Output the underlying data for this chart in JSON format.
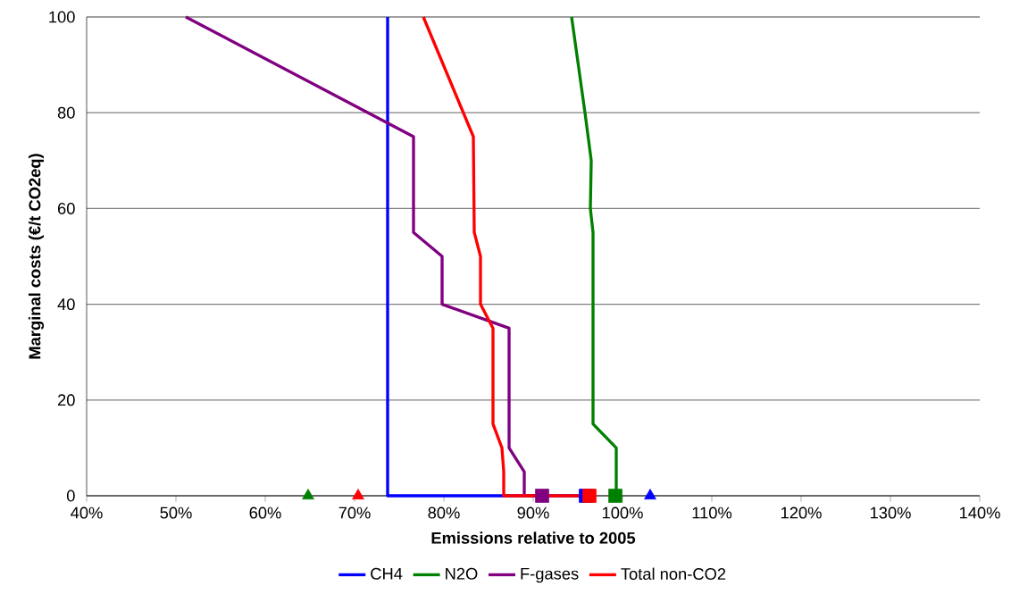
{
  "chart_data": {
    "type": "line",
    "xlabel": "Emissions relative to 2005",
    "ylabel": "Marginal costs (€/t CO2eq)",
    "xlim": [
      40,
      140
    ],
    "ylim": [
      0,
      100
    ],
    "xticks": [
      {
        "value": 40,
        "label": "40%"
      },
      {
        "value": 50,
        "label": "50%"
      },
      {
        "value": 60,
        "label": "60%"
      },
      {
        "value": 70,
        "label": "70%"
      },
      {
        "value": 80,
        "label": "80%"
      },
      {
        "value": 90,
        "label": "90%"
      },
      {
        "value": 100,
        "label": "100%"
      },
      {
        "value": 110,
        "label": "110%"
      },
      {
        "value": 120,
        "label": "120%"
      },
      {
        "value": 130,
        "label": "130%"
      },
      {
        "value": 140,
        "label": "140%"
      }
    ],
    "yticks": [
      0,
      20,
      40,
      60,
      80,
      100
    ],
    "grid": "y",
    "legend": "bottom",
    "line_style": "solid",
    "series": [
      {
        "name": "CH4",
        "color": "#0000ff",
        "x": [
          73.7,
          73.7,
          95.9
        ],
        "values": [
          100,
          0,
          0
        ]
      },
      {
        "name": "N2O",
        "color": "#008000",
        "x": [
          94.3,
          95.8,
          96.5,
          96.4,
          96.7,
          96.7,
          99.3,
          99.3
        ],
        "values": [
          100,
          80,
          70,
          60,
          55,
          15,
          10,
          0
        ]
      },
      {
        "name": "F-gases",
        "color": "#800080",
        "x": [
          51.1,
          76.6,
          76.6,
          79.8,
          79.8,
          87.3,
          87.3,
          89.0,
          89.0,
          91.0
        ],
        "values": [
          100,
          75,
          55,
          50,
          40,
          35,
          10,
          5,
          0,
          0
        ]
      },
      {
        "name": "Total non-CO2",
        "color": "#ff0000",
        "x": [
          77.7,
          83.3,
          83.4,
          84.1,
          84.1,
          85.5,
          85.5,
          86.5,
          86.7,
          86.7,
          96.3
        ],
        "values": [
          100,
          75,
          55,
          50,
          40,
          35,
          15,
          10,
          5,
          0,
          0
        ]
      },
      {
        "type": "scatter",
        "marker": "square",
        "x": [
          95.9,
          99.2,
          91.0,
          96.3
        ],
        "values": [
          0,
          0,
          0,
          0
        ],
        "colors": [
          "#0000ff",
          "#008000",
          "#800080",
          "#ff0000"
        ]
      },
      {
        "type": "scatter",
        "marker": "triangle",
        "x": [
          103.1,
          64.8,
          70.4
        ],
        "values": [
          0,
          0,
          0
        ],
        "colors": [
          "#0000ff",
          "#008000",
          "#ff0000"
        ]
      }
    ]
  }
}
